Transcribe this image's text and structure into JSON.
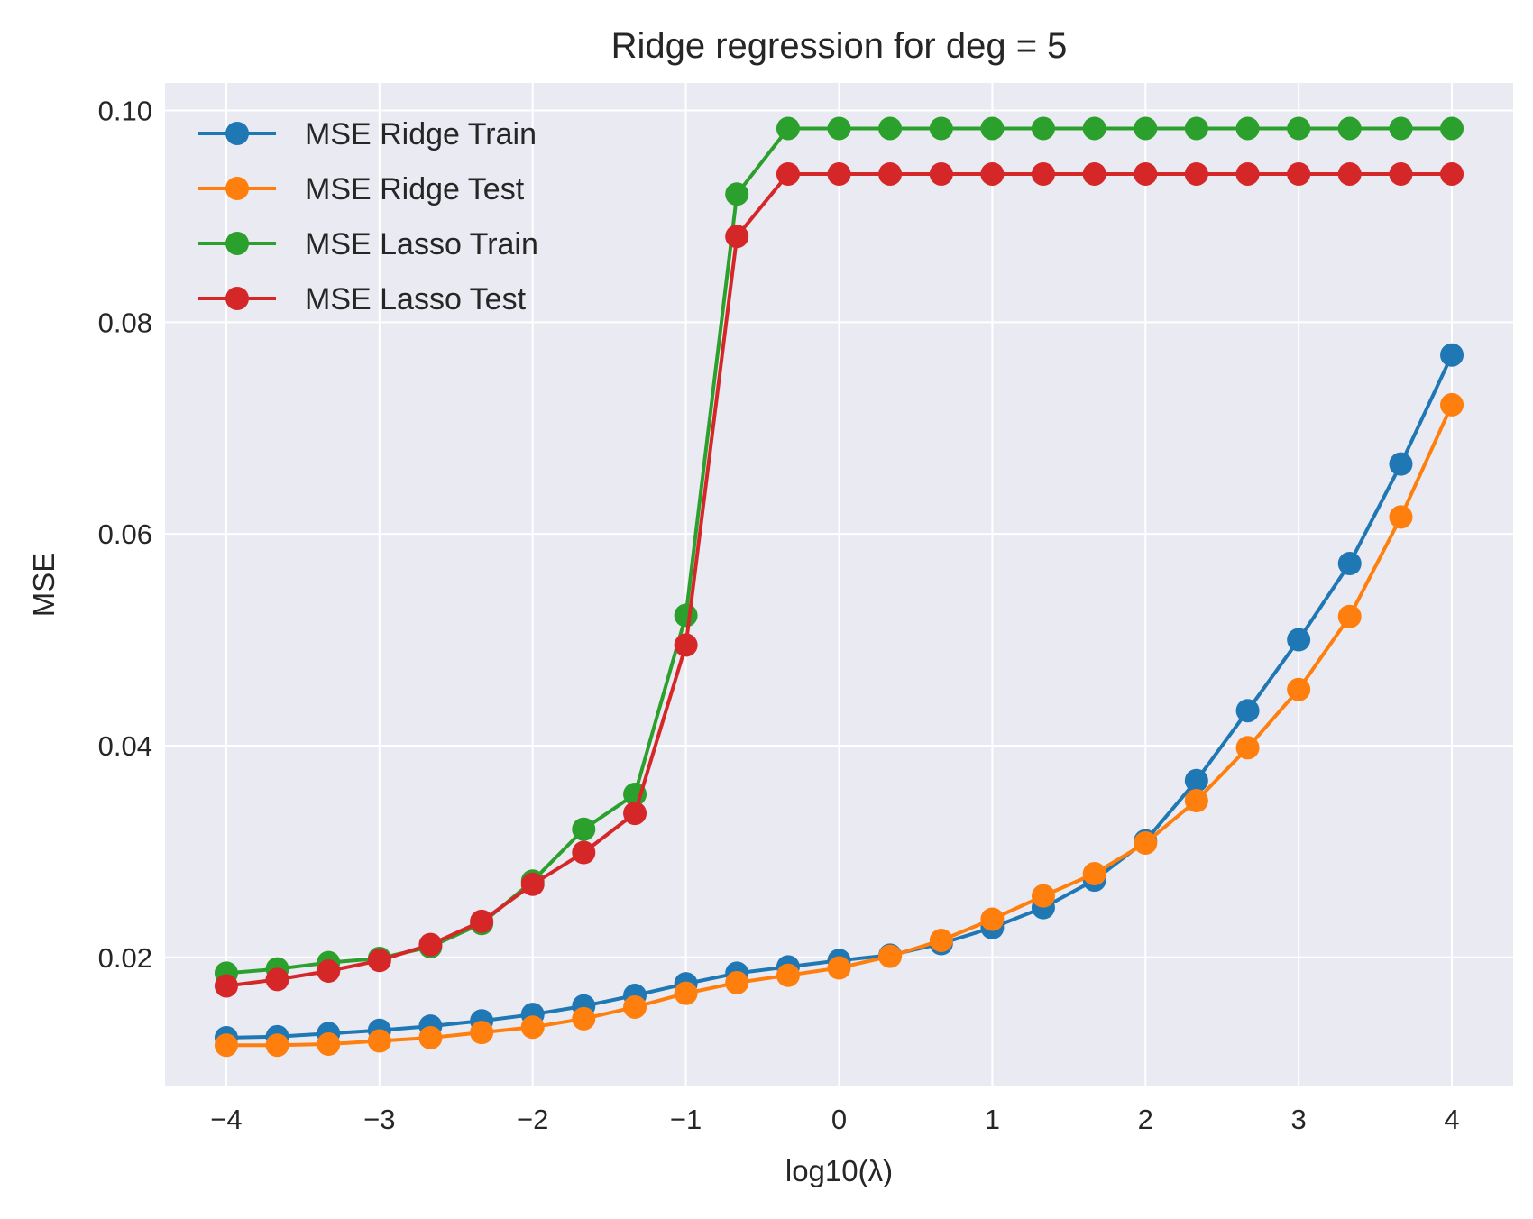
{
  "chart_data": {
    "type": "line",
    "title": "Ridge regression for deg = 5",
    "xlabel": "log10(λ)",
    "ylabel": "MSE",
    "xlim": [
      -4.4,
      4.4
    ],
    "ylim": [
      0.0078,
      0.1026
    ],
    "x_ticks": [
      -4,
      -3,
      -2,
      -1,
      0,
      1,
      2,
      3,
      4
    ],
    "x_tick_labels": [
      "−4",
      "−3",
      "−2",
      "−1",
      "0",
      "1",
      "2",
      "3",
      "4"
    ],
    "y_ticks": [
      0.02,
      0.04,
      0.06,
      0.08,
      0.1
    ],
    "y_tick_labels": [
      "0.02",
      "0.04",
      "0.06",
      "0.08",
      "0.10"
    ],
    "grid": true,
    "legend_position": "upper-left",
    "background_color": "#eaeaf2",
    "x": [
      -4.0,
      -3.667,
      -3.333,
      -3.0,
      -2.667,
      -2.333,
      -2.0,
      -1.667,
      -1.333,
      -1.0,
      -0.667,
      -0.333,
      0.0,
      0.333,
      0.667,
      1.0,
      1.333,
      1.667,
      2.0,
      2.333,
      2.667,
      3.0,
      3.333,
      3.667,
      4.0
    ],
    "series": [
      {
        "name": "MSE Ridge Train",
        "color": "#1f77b4",
        "values": [
          0.0124,
          0.0125,
          0.0128,
          0.0131,
          0.0135,
          0.014,
          0.0146,
          0.0154,
          0.0164,
          0.0175,
          0.0185,
          0.0191,
          0.0197,
          0.0202,
          0.0213,
          0.0228,
          0.0247,
          0.0273,
          0.031,
          0.0367,
          0.0433,
          0.05,
          0.0572,
          0.0666,
          0.0769
        ]
      },
      {
        "name": "MSE Ridge Test",
        "color": "#ff7f0e",
        "values": [
          0.0117,
          0.0117,
          0.0118,
          0.0121,
          0.0124,
          0.0129,
          0.0134,
          0.0142,
          0.0153,
          0.0166,
          0.0176,
          0.0183,
          0.019,
          0.0201,
          0.0216,
          0.0236,
          0.0258,
          0.0279,
          0.0308,
          0.0348,
          0.0398,
          0.0453,
          0.0522,
          0.0616,
          0.0722
        ]
      },
      {
        "name": "MSE Lasso Train",
        "color": "#2ca02c",
        "values": [
          0.0185,
          0.0189,
          0.0195,
          0.0199,
          0.021,
          0.0232,
          0.0272,
          0.0321,
          0.0354,
          0.0523,
          0.0921,
          0.0983,
          0.0983,
          0.0983,
          0.0983,
          0.0983,
          0.0983,
          0.0983,
          0.0983,
          0.0983,
          0.0983,
          0.0983,
          0.0983,
          0.0983,
          0.0983
        ]
      },
      {
        "name": "MSE Lasso Test",
        "color": "#d62728",
        "values": [
          0.0173,
          0.0179,
          0.0187,
          0.0197,
          0.0212,
          0.0234,
          0.0269,
          0.0299,
          0.0336,
          0.0495,
          0.0881,
          0.094,
          0.094,
          0.094,
          0.094,
          0.094,
          0.094,
          0.094,
          0.094,
          0.094,
          0.094,
          0.094,
          0.094,
          0.094,
          0.094
        ]
      }
    ]
  }
}
